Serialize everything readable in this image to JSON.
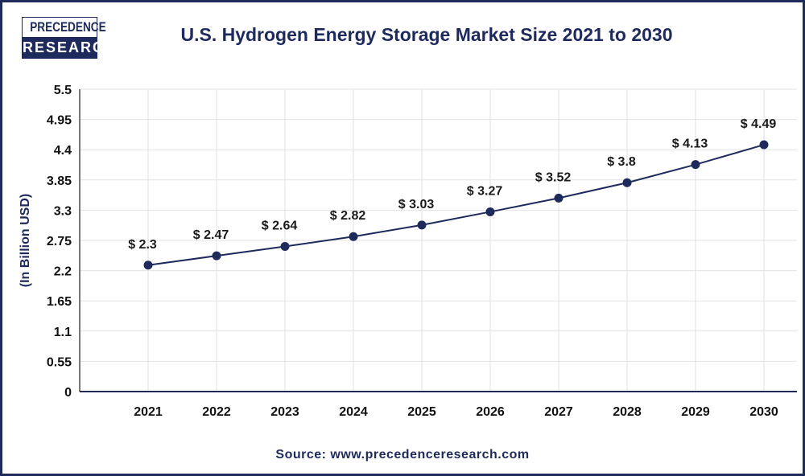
{
  "brand": {
    "logo_line1": "PRECEDENCE",
    "logo_line2": "RESEARCH"
  },
  "source": "Source: www.precedenceresearch.com",
  "colors": {
    "line": "#1f2a5c",
    "marker": "#1f2a5c",
    "title": "#1f2a5c",
    "grid": "#e2e2e2"
  },
  "chart_data": {
    "type": "line",
    "title": "U.S. Hydrogen Energy Storage Market Size 2021 to 2030",
    "xlabel": "",
    "ylabel": "(In Billion USD)",
    "categories": [
      "2021",
      "2022",
      "2023",
      "2024",
      "2025",
      "2026",
      "2027",
      "2028",
      "2029",
      "2030"
    ],
    "values": [
      2.3,
      2.47,
      2.64,
      2.82,
      3.03,
      3.27,
      3.52,
      3.8,
      4.13,
      4.49
    ],
    "data_labels": [
      "$ 2.3",
      "$ 2.47",
      "$ 2.64",
      "$ 2.82",
      "$ 3.03",
      "$ 3.27",
      "$ 3.52",
      "$ 3.8",
      "$ 4.13",
      "$ 4.49"
    ],
    "yticks": [
      "0",
      "0.55",
      "1.1",
      "1.65",
      "2.2",
      "2.75",
      "3.3",
      "3.85",
      "4.4",
      "4.95",
      "5.5"
    ],
    "ylim": [
      0,
      5.5
    ],
    "grid": true,
    "legend": "none"
  }
}
